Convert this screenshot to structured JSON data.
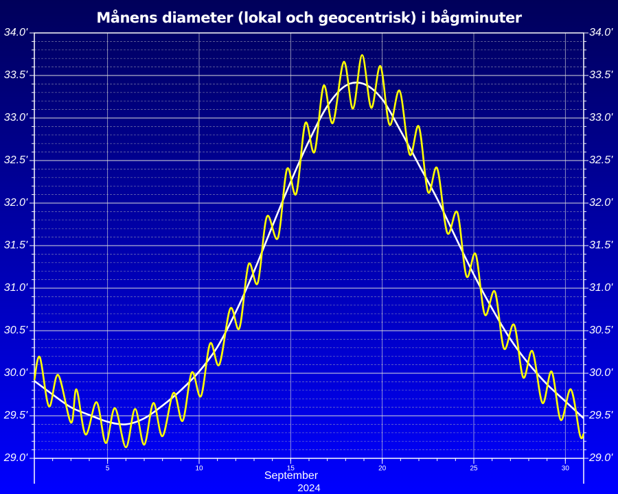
{
  "chart_data": {
    "type": "line",
    "title": "Månens diameter (lokal och geocentrisk) i bågminuter",
    "xlabel": "September",
    "xlabel2": "2024",
    "xlim": [
      1,
      31
    ],
    "xticks": [
      5,
      10,
      15,
      20,
      25,
      30
    ],
    "ylim": [
      29.0,
      34.0
    ],
    "yticks": [
      {
        "value": 29.0,
        "label": "29.0'"
      },
      {
        "value": 29.5,
        "label": "29.5'"
      },
      {
        "value": 30.0,
        "label": "30.0'"
      },
      {
        "value": 30.5,
        "label": "30.5'"
      },
      {
        "value": 31.0,
        "label": "31.0'"
      },
      {
        "value": 31.5,
        "label": "31.5'"
      },
      {
        "value": 32.0,
        "label": "32.0'"
      },
      {
        "value": 32.5,
        "label": "32.5'"
      },
      {
        "value": 33.0,
        "label": "33.0'"
      },
      {
        "value": 33.5,
        "label": "33.5'"
      },
      {
        "value": 34.0,
        "label": "34.0'"
      }
    ],
    "grid": true,
    "minor_grid": true,
    "mirror_y_axis": true,
    "series": [
      {
        "color": "#ffffff",
        "x": [
          1,
          2,
          3,
          4,
          5,
          6,
          7,
          8,
          9,
          10,
          11,
          12,
          13,
          14,
          15,
          16,
          17,
          18,
          19,
          20,
          21,
          22,
          23,
          24,
          25,
          26,
          27,
          28,
          29,
          30,
          31
        ],
        "values": [
          29.91,
          29.75,
          29.6,
          29.51,
          29.43,
          29.4,
          29.47,
          29.62,
          29.8,
          30.02,
          30.31,
          30.72,
          31.2,
          31.73,
          32.25,
          32.73,
          33.14,
          33.38,
          33.4,
          33.22,
          32.85,
          32.45,
          32.05,
          31.6,
          31.16,
          30.76,
          30.4,
          30.11,
          29.87,
          29.67,
          29.47
        ]
      },
      {
        "color": "#ffff00",
        "x": [
          1.0,
          1.3,
          1.8,
          2.3,
          3.0,
          3.3,
          3.8,
          4.4,
          4.9,
          5.4,
          6.0,
          6.5,
          7.0,
          7.5,
          8.0,
          8.6,
          9.1,
          9.6,
          10.1,
          10.6,
          11.1,
          11.7,
          12.2,
          12.7,
          13.2,
          13.7,
          14.3,
          14.8,
          15.3,
          15.8,
          16.3,
          16.8,
          17.3,
          17.9,
          18.4,
          18.9,
          19.4,
          19.9,
          20.4,
          20.95,
          21.5,
          22.0,
          22.5,
          23.0,
          23.55,
          24.1,
          24.6,
          25.1,
          25.6,
          26.15,
          26.65,
          27.2,
          27.7,
          28.2,
          28.75,
          29.25,
          29.75,
          30.3,
          30.8,
          31.0
        ],
        "values": [
          29.92,
          30.19,
          29.61,
          29.98,
          29.42,
          29.81,
          29.28,
          29.66,
          29.18,
          29.59,
          29.13,
          29.58,
          29.16,
          29.65,
          29.26,
          29.77,
          29.44,
          30.01,
          29.73,
          30.35,
          30.1,
          30.76,
          30.53,
          31.28,
          31.06,
          31.84,
          31.59,
          32.4,
          32.11,
          32.94,
          32.6,
          33.38,
          32.94,
          33.66,
          33.11,
          33.74,
          33.12,
          33.61,
          32.92,
          33.32,
          32.57,
          32.9,
          32.13,
          32.41,
          31.65,
          31.89,
          31.14,
          31.4,
          30.69,
          30.96,
          30.29,
          30.57,
          29.95,
          30.26,
          29.65,
          30.02,
          29.45,
          29.81,
          29.27,
          29.29
        ]
      }
    ]
  }
}
